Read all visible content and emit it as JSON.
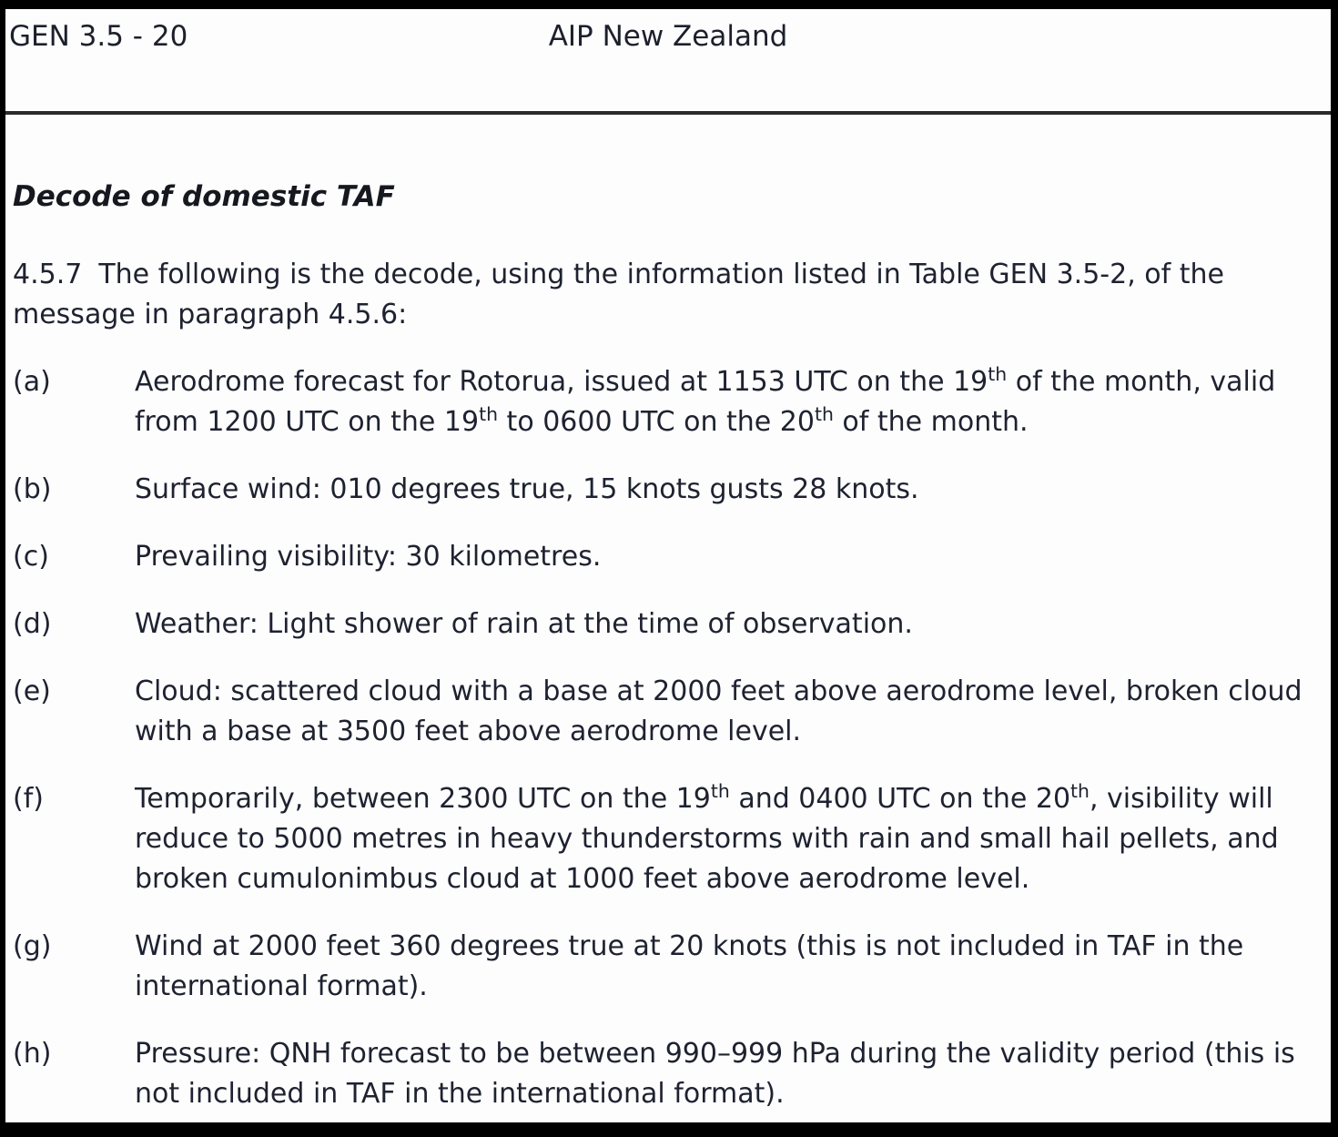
{
  "header": {
    "left": "GEN 3.5 - 20",
    "center": "AIP New Zealand"
  },
  "heading": "Decode of domestic TAF",
  "intro": {
    "number": "4.5.7",
    "text": "The following is the decode, using the information listed in Table GEN 3.5-2, of the message in paragraph 4.5.6:"
  },
  "items": [
    {
      "label": "(a)",
      "text": "Aerodrome forecast for Rotorua, issued at 1153 UTC on the 19^{th} of the month, valid from 1200 UTC on the 19^{th} to 0600 UTC on the 20^{th} of the month."
    },
    {
      "label": "(b)",
      "text": "Surface wind: 010 degrees true, 15 knots gusts 28 knots."
    },
    {
      "label": "(c)",
      "text": "Prevailing visibility: 30 kilometres."
    },
    {
      "label": "(d)",
      "text": "Weather: Light shower of rain at the time of observation."
    },
    {
      "label": "(e)",
      "text": "Cloud: scattered cloud with a base at 2000 feet above aerodrome level, broken cloud with a base at 3500 feet above aerodrome level."
    },
    {
      "label": "(f)",
      "text": "Temporarily, between 2300 UTC on the 19^{th} and 0400 UTC on the 20^{th}, visibility will reduce to 5000 metres in heavy thunderstorms with rain and small hail pellets, and broken cumulonimbus cloud at 1000 feet above aerodrome level."
    },
    {
      "label": "(g)",
      "text": "Wind at 2000 feet 360 degrees true at 20 knots (this is not included in TAF in the international format)."
    },
    {
      "label": "(h)",
      "text": "Pressure: QNH forecast to be between 990–999 hPa during the validity period (this is not included in TAF in the international format)."
    }
  ]
}
